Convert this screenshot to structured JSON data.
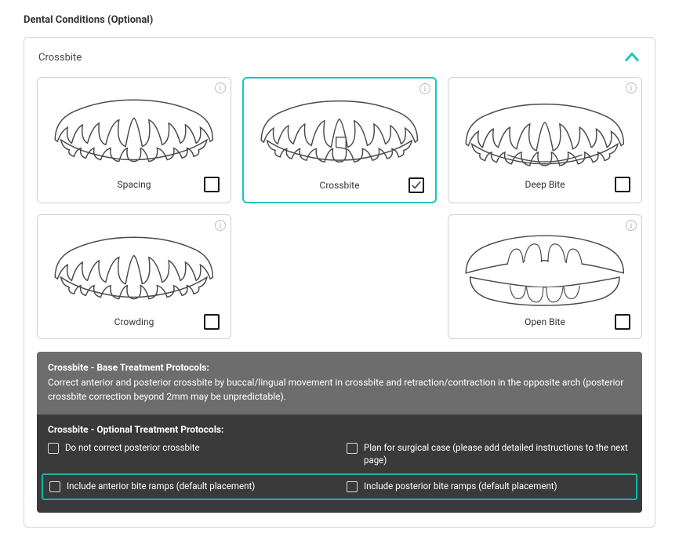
{
  "section_title": "Dental Conditions (Optional)",
  "panel": {
    "title": "Crossbite",
    "collapsed": false,
    "chevron_color": "#15c8c0"
  },
  "panel_border_color": "#d5d5d5",
  "background_color": "#ffffff",
  "card_border_color": "#cfcfcf",
  "card_selected_border_color": "#15c8c0",
  "teeth_stroke": "#4a4a4a",
  "teeth_fill": "#ffffff",
  "checkbox_border": "#1a1a1a",
  "cards": [
    {
      "id": "spacing",
      "label": "Spacing",
      "checked": false,
      "selected": false,
      "variant": "spacing"
    },
    {
      "id": "crossbite",
      "label": "Crossbite",
      "checked": true,
      "selected": true,
      "variant": "crossbite"
    },
    {
      "id": "deepbite",
      "label": "Deep Bite",
      "checked": false,
      "selected": false,
      "variant": "deepbite"
    },
    {
      "id": "crowding",
      "label": "Crowding",
      "checked": false,
      "selected": false,
      "variant": "crowding"
    },
    {
      "id": "blank",
      "label": "",
      "checked": false,
      "selected": false,
      "variant": "blank",
      "hidden": true
    },
    {
      "id": "openbite",
      "label": "Open Bite",
      "checked": false,
      "selected": false,
      "variant": "openbite"
    }
  ],
  "protocol": {
    "base_bg": "#6d6d6d",
    "opt_bg": "#3a3a3a",
    "highlight_border": "#13b4a8",
    "base_title": "Crossbite - Base Treatment Protocols:",
    "base_text": "Correct anterior and posterior crossbite by buccal/lingual movement in crossbite and retraction/contraction in the opposite arch (posterior crossbite correction beyond 2mm may be unpredictable).",
    "opt_title": "Crossbite - Optional Treatment Protocols:",
    "options": [
      {
        "id": "no_post",
        "label": "Do not correct posterior crossbite",
        "checked": false,
        "highlighted": false
      },
      {
        "id": "surgical",
        "label": "Plan for surgical case (please add detailed instructions to the next page)",
        "checked": false,
        "highlighted": false
      },
      {
        "id": "ant_ramps",
        "label": "Include anterior bite ramps (default placement)",
        "checked": false,
        "highlighted": true
      },
      {
        "id": "post_ramps",
        "label": "Include posterior bite ramps (default placement)",
        "checked": false,
        "highlighted": true
      }
    ]
  }
}
